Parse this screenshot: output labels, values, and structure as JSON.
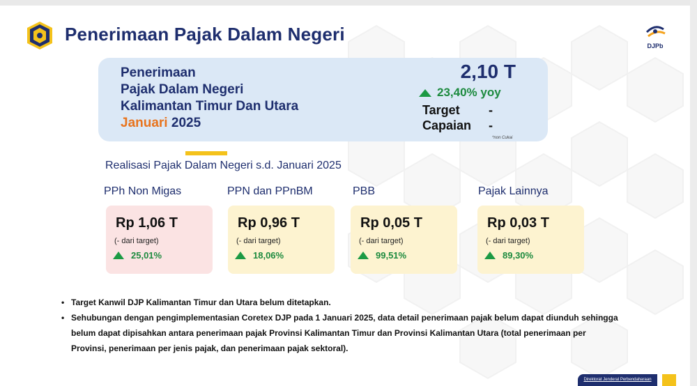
{
  "title": "Penerimaan Pajak Dalam Negeri",
  "brand": {
    "label": "DJPb"
  },
  "summary": {
    "line1": "Penerimaan",
    "line2": "Pajak Dalam Negeri",
    "line3": "Kalimantan Timur Dan Utara",
    "period_month": "Januari",
    "period_year": "2025",
    "total": "2,10 T",
    "yoy": "23,40% yoy",
    "target_label": "Target",
    "target_value": "-",
    "capaian_label": "Capaian",
    "capaian_value": "-",
    "note": "*non Cukai"
  },
  "subtitle": "Realisasi Pajak Dalam Negeri s.d. Januari 2025",
  "categories": [
    {
      "name": "PPh Non Migas",
      "value": "Rp 1,06 T",
      "target_text": "(- dari target)",
      "growth": "25,01%"
    },
    {
      "name": "PPN dan PPnBM",
      "value": "Rp 0,96 T",
      "target_text": "(- dari target)",
      "growth": "18,06%"
    },
    {
      "name": "PBB",
      "value": "Rp 0,05 T",
      "target_text": "(- dari target)",
      "growth": "99,51%"
    },
    {
      "name": "Pajak Lainnya",
      "value": "Rp 0,03 T",
      "target_text": "(- dari target)",
      "growth": "89,30%"
    }
  ],
  "bullets": [
    "Target Kanwil DJP Kalimantan Timur dan Utara belum ditetapkan.",
    "Sehubungan dengan pengimplementasian Coretex DJP pada 1 Januari 2025, data detail penerimaan pajak belum dapat diunduh sehingga belum dapat dipisahkan antara penerimaan pajak Provinsi Kalimantan Timur dan Provinsi Kalimantan Utara (total penerimaan per Provinsi, penerimaan per jenis pajak, dan penerimaan pajak sektoral)."
  ],
  "footer": {
    "label": "Direktorat Jenderal Perbendaharaan"
  },
  "colors": {
    "navy": "#1e2e6e",
    "orange": "#e8741e",
    "green": "#1c9a44",
    "summary_bg": "#dbe8f6",
    "card_pink": "#fbe3e3",
    "card_yellow": "#fdf3d0",
    "accent_yellow": "#f4c21b"
  },
  "icons": {
    "logo": "kemenkeu-emblem-icon",
    "brand": "djpb-logo-icon",
    "up": "triangle-up-icon"
  }
}
